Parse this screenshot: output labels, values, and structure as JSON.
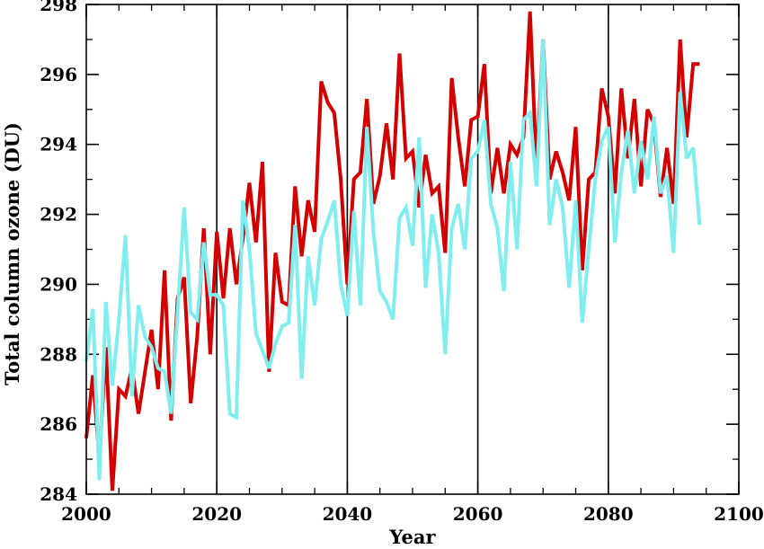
{
  "chart_data": {
    "type": "line",
    "title": "",
    "xlabel": "Year",
    "ylabel": "Total column ozone (DU)",
    "xlim": [
      2000,
      2100
    ],
    "ylim": [
      284,
      298
    ],
    "x_ticks": [
      2000,
      2020,
      2040,
      2060,
      2080,
      2100
    ],
    "y_ticks": [
      284,
      286,
      288,
      290,
      292,
      294,
      296,
      298
    ],
    "vertical_reference_lines": [
      2020,
      2040,
      2060,
      2080
    ],
    "grid": false,
    "legend": "none",
    "series": [
      {
        "color": "#d40000",
        "x": [
          2000,
          2001,
          2002,
          2003,
          2004,
          2005,
          2006,
          2007,
          2008,
          2009,
          2010,
          2011,
          2012,
          2013,
          2014,
          2015,
          2016,
          2017,
          2018,
          2019,
          2020,
          2021,
          2022,
          2023,
          2024,
          2025,
          2026,
          2027,
          2028,
          2029,
          2030,
          2031,
          2032,
          2033,
          2034,
          2035,
          2036,
          2037,
          2038,
          2039,
          2040,
          2041,
          2042,
          2043,
          2044,
          2045,
          2046,
          2047,
          2048,
          2049,
          2050,
          2051,
          2052,
          2053,
          2054,
          2055,
          2056,
          2057,
          2058,
          2059,
          2060,
          2061,
          2062,
          2063,
          2064,
          2065,
          2066,
          2067,
          2068,
          2069,
          2070,
          2071,
          2072,
          2073,
          2074,
          2075,
          2076,
          2077,
          2078,
          2079,
          2080,
          2081,
          2082,
          2083,
          2084,
          2085,
          2086,
          2087,
          2088,
          2089,
          2090,
          2091,
          2092,
          2093,
          2094
        ],
        "y": [
          285.6,
          287.4,
          285.0,
          288.2,
          284.1,
          287.0,
          286.8,
          287.6,
          286.3,
          287.5,
          288.7,
          287.0,
          290.4,
          286.1,
          289.6,
          290.2,
          286.6,
          288.5,
          291.6,
          288.0,
          291.5,
          289.6,
          291.6,
          290.0,
          291.3,
          292.9,
          291.2,
          293.5,
          287.5,
          290.9,
          289.5,
          289.4,
          292.8,
          290.8,
          292.4,
          291.5,
          295.8,
          295.2,
          294.9,
          293.0,
          290.0,
          293.0,
          293.2,
          295.3,
          292.3,
          293.1,
          294.6,
          293.0,
          296.6,
          293.6,
          293.8,
          292.2,
          293.7,
          292.6,
          292.8,
          290.9,
          295.9,
          294.2,
          292.8,
          294.7,
          294.8,
          296.3,
          292.6,
          293.9,
          292.6,
          294.0,
          293.7,
          294.2,
          297.8,
          293.3,
          297.0,
          293.0,
          293.8,
          293.2,
          292.4,
          294.5,
          290.4,
          293.0,
          293.2,
          295.6,
          294.8,
          292.6,
          295.6,
          293.6,
          295.3,
          292.8,
          295.0,
          294.6,
          292.5,
          293.9,
          292.3,
          297.0,
          294.2,
          296.3,
          296.3
        ]
      },
      {
        "color": "#80eeee",
        "x": [
          2000,
          2001,
          2002,
          2003,
          2004,
          2005,
          2006,
          2007,
          2008,
          2009,
          2010,
          2011,
          2012,
          2013,
          2014,
          2015,
          2016,
          2017,
          2018,
          2019,
          2020,
          2021,
          2022,
          2023,
          2024,
          2025,
          2026,
          2027,
          2028,
          2029,
          2030,
          2031,
          2032,
          2033,
          2034,
          2035,
          2036,
          2037,
          2038,
          2039,
          2040,
          2041,
          2042,
          2043,
          2044,
          2045,
          2046,
          2047,
          2048,
          2049,
          2050,
          2051,
          2052,
          2053,
          2054,
          2055,
          2056,
          2057,
          2058,
          2059,
          2060,
          2061,
          2062,
          2063,
          2064,
          2065,
          2066,
          2067,
          2068,
          2069,
          2070,
          2071,
          2072,
          2073,
          2074,
          2075,
          2076,
          2077,
          2078,
          2079,
          2080,
          2081,
          2082,
          2083,
          2084,
          2085,
          2086,
          2087,
          2088,
          2089,
          2090,
          2091,
          2092,
          2093,
          2094
        ],
        "y": [
          287.8,
          289.3,
          284.4,
          289.5,
          287.1,
          289.0,
          291.4,
          286.8,
          289.4,
          288.5,
          288.2,
          287.6,
          287.5,
          286.3,
          289.2,
          292.2,
          289.2,
          289.0,
          291.2,
          289.7,
          289.7,
          289.4,
          286.3,
          286.2,
          292.4,
          291.0,
          288.6,
          288.1,
          287.6,
          288.3,
          288.8,
          288.9,
          291.7,
          287.3,
          290.8,
          289.4,
          291.3,
          291.8,
          292.4,
          290.0,
          289.1,
          292.1,
          289.4,
          294.5,
          291.5,
          289.8,
          289.5,
          289.0,
          291.9,
          292.2,
          291.1,
          294.2,
          289.9,
          292.0,
          290.9,
          288.0,
          291.6,
          292.3,
          291.0,
          293.6,
          293.8,
          294.7,
          292.3,
          291.6,
          289.8,
          293.5,
          291.0,
          294.7,
          294.9,
          292.8,
          297.0,
          291.7,
          293.0,
          292.2,
          289.9,
          292.4,
          288.9,
          291.0,
          293.0,
          294.1,
          294.5,
          291.2,
          293.2,
          294.4,
          292.6,
          294.1,
          293.0,
          294.8,
          292.6,
          293.1,
          290.9,
          295.5,
          293.6,
          293.9,
          291.7
        ]
      }
    ]
  }
}
